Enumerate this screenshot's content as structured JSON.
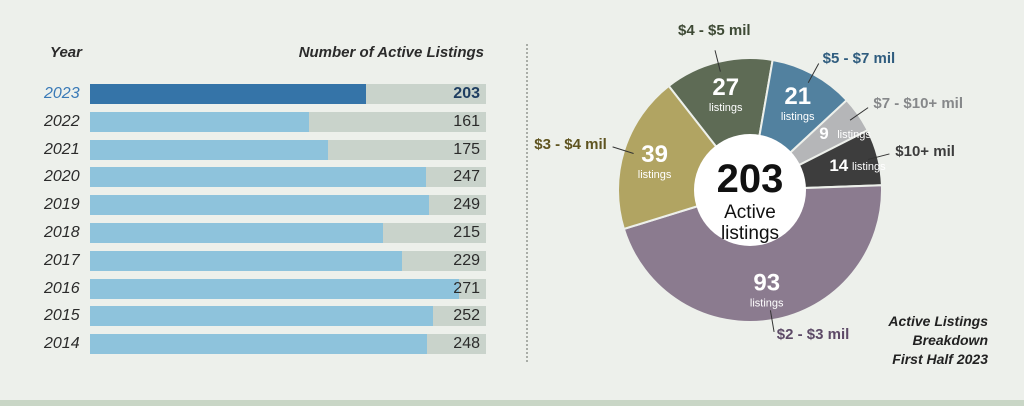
{
  "left_panel": {
    "year_header": "Year",
    "value_header": "Number of Active Listings"
  },
  "right_panel": {
    "center_number": "203",
    "center_label_1": "Active",
    "center_label_2": "listings",
    "caption_line_1": "Active Listings",
    "caption_line_2": "Breakdown",
    "caption_line_3": "First Half 2023"
  },
  "colors": {
    "bar_fill": "#8ec3dc",
    "bar_fill_current": "#3574a8",
    "bar_track": "#c9d3cb",
    "background": "#edf0eb"
  },
  "chart_data": [
    {
      "type": "bar",
      "orientation": "horizontal",
      "title": "Number of Active Listings",
      "xlabel": "Number of Active Listings",
      "ylabel": "Year",
      "categories": [
        "2023",
        "2022",
        "2021",
        "2020",
        "2019",
        "2018",
        "2017",
        "2016",
        "2015",
        "2014"
      ],
      "values": [
        203,
        161,
        175,
        247,
        249,
        215,
        229,
        271,
        252,
        248
      ],
      "highlight": "2023",
      "xlim": [
        0,
        291
      ]
    },
    {
      "type": "pie",
      "title": "Active Listings Breakdown First Half 2023",
      "total": 203,
      "slices": [
        {
          "label": "$4 - $5 mil",
          "value": 27,
          "sub": "listings",
          "color": "#5e6b55",
          "label_color": "#3e4a35"
        },
        {
          "label": "$5 - $7 mil",
          "value": 21,
          "sub": "listings",
          "color": "#52819f",
          "label_color": "#2f5c7e"
        },
        {
          "label": "$7 - $10+ mil",
          "value": 9,
          "sub": "listings",
          "color": "#b5b6b8",
          "label_color": "#86888a"
        },
        {
          "label": "$10+ mil",
          "value": 14,
          "sub": "listings",
          "color": "#3d3d3d",
          "label_color": "#3d3d3d"
        },
        {
          "label": "$2 - $3 mil",
          "value": 93,
          "sub": "listings",
          "color": "#8b7b8f",
          "label_color": "#5d4a67"
        },
        {
          "label": "$3 - $4 mil",
          "value": 39,
          "sub": "listings",
          "color": "#b1a462",
          "label_color": "#5f5420"
        }
      ]
    }
  ]
}
